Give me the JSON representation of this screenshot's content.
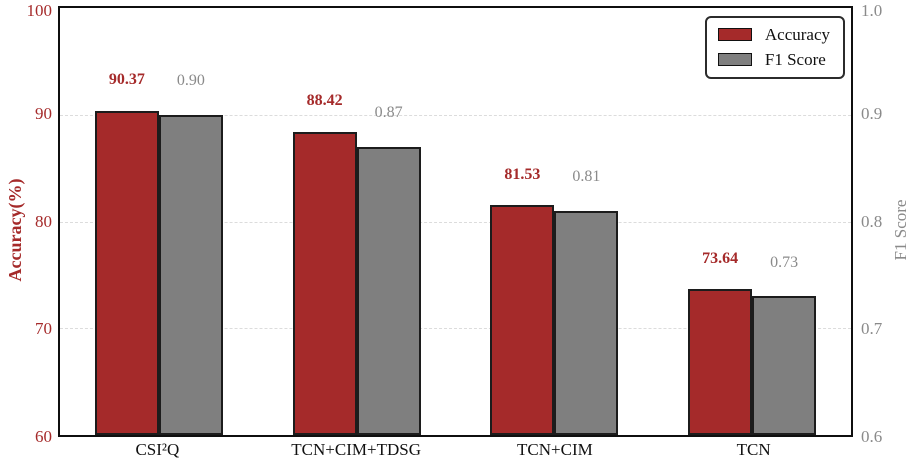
{
  "chart_data": {
    "type": "bar",
    "title": "",
    "categories": [
      "CSI²Q",
      "TCN+CIM+TDSG",
      "TCN+CIM",
      "TCN"
    ],
    "series": [
      {
        "name": "Accuracy",
        "axis": "left",
        "values": [
          90.37,
          88.42,
          81.53,
          73.64
        ],
        "value_labels": [
          "90.37",
          "88.42",
          "81.53",
          "73.64"
        ],
        "color": "#A52A2A",
        "label_color": "#A52A2A"
      },
      {
        "name": "F1 Score",
        "axis": "right",
        "values": [
          0.9,
          0.87,
          0.81,
          0.73
        ],
        "value_labels": [
          "0.90",
          "0.87",
          "0.81",
          "0.73"
        ],
        "color": "#7F7F7F",
        "label_color": "#8a8a8a"
      }
    ],
    "left_axis": {
      "label": "Accuracy(%)",
      "min": 60,
      "max": 100,
      "ticks": [
        100,
        90,
        80,
        70,
        60
      ],
      "tick_labels": [
        "100",
        "90",
        "80",
        "70",
        "60"
      ],
      "color": "#A52A2A"
    },
    "right_axis": {
      "label": "F1 Score",
      "min": 0.6,
      "max": 1.0,
      "ticks": [
        1.0,
        0.9,
        0.8,
        0.7,
        0.6
      ],
      "tick_labels": [
        "1.0",
        "0.9",
        "0.8",
        "0.7",
        "0.6"
      ],
      "color": "#8a8a8a"
    },
    "legend": {
      "position": "top-right",
      "items": [
        {
          "label": "Accuracy",
          "color": "#A52A2A"
        },
        {
          "label": "F1 Score",
          "color": "#7F7F7F"
        }
      ]
    },
    "grid": "horizontal-dashed",
    "frame_color": "#0f0f0f"
  }
}
